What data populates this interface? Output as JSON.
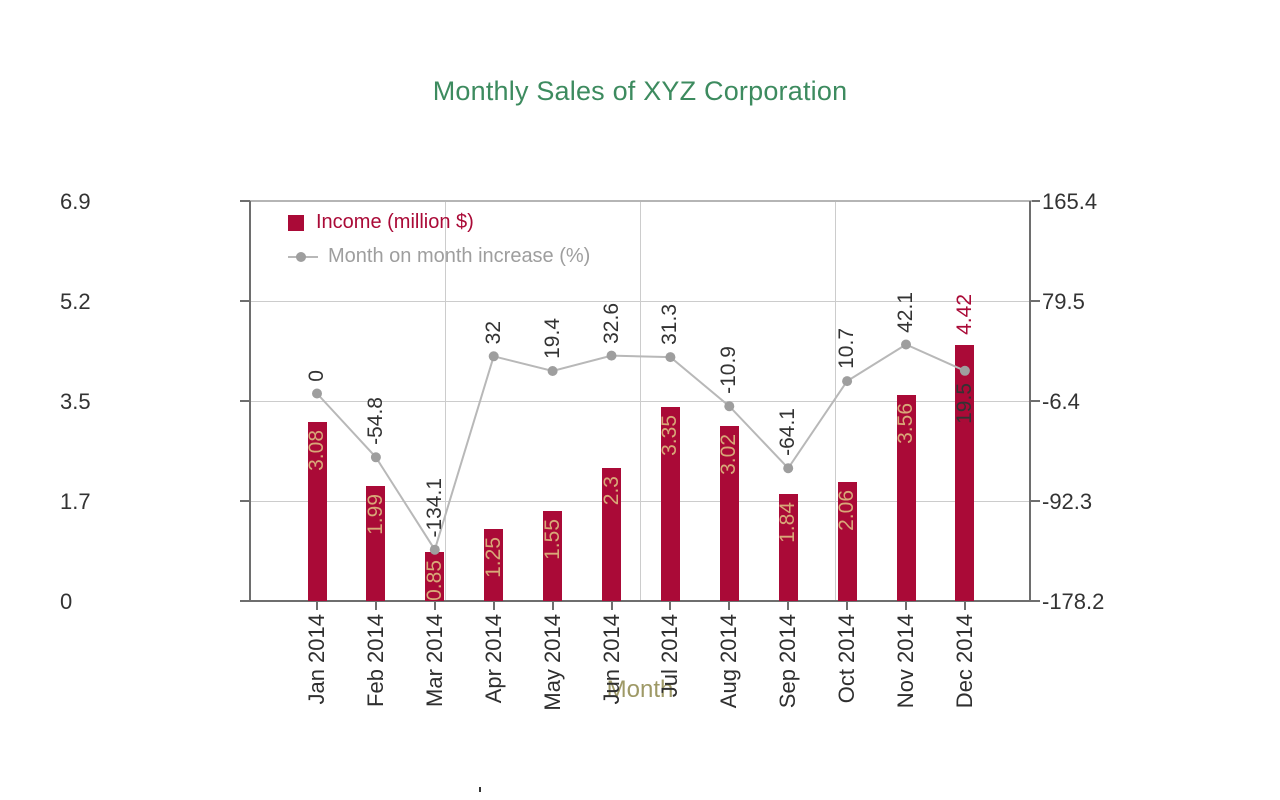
{
  "title": {
    "text": "Monthly Sales of XYZ Corporation",
    "color": "#3d8b5f"
  },
  "legend": {
    "items": [
      {
        "label": "Income (million $)",
        "swatch": "square-icon",
        "color": "#aa0a37",
        "text_color": "#aa0a37"
      },
      {
        "label": "Month on month increase (%)",
        "swatch": "line-dot-icon",
        "color": "#b8b8b8",
        "point_color": "#9e9e9e",
        "text_color": "#9e9e9e"
      }
    ]
  },
  "chart_data": {
    "type": "combo bar+line, dual y-axis",
    "categories": [
      "Jan 2014",
      "Feb 2014",
      "Mar 2014",
      "Apr 2014",
      "May 2014",
      "Jun 2014",
      "Jul 2014",
      "Aug 2014",
      "Sep 2014",
      "Oct 2014",
      "Nov 2014",
      "Dec 2014"
    ],
    "series": [
      {
        "name": "Income (million $)",
        "type": "bar",
        "axis": "left",
        "color": "#aa0a37",
        "label_color": "#d8a878",
        "outside_label_color": "#aa0a37",
        "values": [
          3.08,
          1.99,
          0.85,
          1.25,
          1.55,
          2.3,
          3.35,
          3.02,
          1.84,
          2.06,
          3.56,
          4.42
        ],
        "label_placement": [
          "in",
          "in",
          "in",
          "in",
          "in",
          "in",
          "in",
          "in",
          "in",
          "in",
          "in",
          "out"
        ]
      },
      {
        "name": "Month on month increase (%)",
        "type": "line",
        "axis": "right",
        "color": "#b8b8b8",
        "point_color": "#9e9e9e",
        "label_color": "#333333",
        "values": [
          0,
          -54.8,
          -134.1,
          32,
          19.4,
          32.6,
          31.3,
          -10.9,
          -64.1,
          10.7,
          42.1,
          19.5
        ],
        "label_placement": [
          "above",
          "above",
          "above",
          "above",
          "above",
          "above",
          "above",
          "above",
          "above",
          "above",
          "above",
          "below"
        ]
      }
    ],
    "left_axis": {
      "range": [
        0,
        6.9
      ],
      "ticks": [
        "6.9",
        "5.2",
        "3.5",
        "1.7",
        "0"
      ]
    },
    "right_axis": {
      "range": [
        -178.2,
        165.4
      ],
      "ticks": [
        "165.4",
        "79.5",
        "-6.4",
        "-92.3",
        "-178.2"
      ]
    },
    "x_axis": {
      "title": "Month",
      "title_color": "#9e9966",
      "label_color": "#2f2f2f"
    },
    "grid": {
      "on": true,
      "color": "#cccccc",
      "axis_line_color": "#6e6e6e",
      "top_line_color": "#b5b5b5",
      "v_fractions": [
        0.25,
        0.5,
        0.75
      ]
    },
    "legend_position": "top-left inside plot"
  }
}
